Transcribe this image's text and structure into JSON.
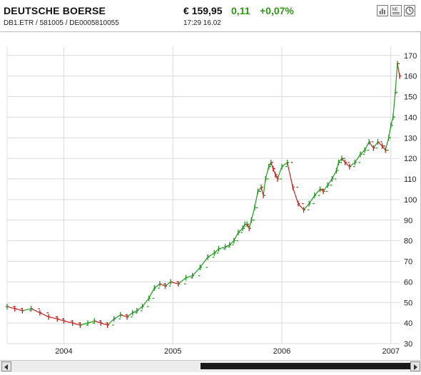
{
  "header": {
    "title": "DEUTSCHE BOERSE",
    "ids": "DB1.ETR  /  581005  /  DE0005810055",
    "price": "€ 159,95",
    "change": "0,11",
    "change_pct": "+0,07%",
    "time": "17:29   16.02",
    "tools": [
      "bar-chart-icon",
      "news-icon",
      "clock-icon"
    ]
  },
  "colors": {
    "up": "#1f9a1f",
    "down": "#c82020",
    "grid": "#d9d9d9",
    "positive_text": "#2a9a12"
  },
  "chart_data": {
    "type": "line",
    "title": "",
    "xlabel": "",
    "ylabel": "",
    "y_axis_position": "right",
    "grid": true,
    "ylim": [
      30,
      172
    ],
    "yticks": [
      30,
      40,
      50,
      60,
      70,
      80,
      90,
      100,
      110,
      120,
      130,
      140,
      150,
      160,
      170
    ],
    "xlim": [
      2003.48,
      2007.08
    ],
    "xticks": [
      {
        "label": "2004",
        "value": 2004.0
      },
      {
        "label": "2005",
        "value": 2005.0
      },
      {
        "label": "2006",
        "value": 2006.0
      },
      {
        "label": "2007",
        "value": 2007.0
      }
    ],
    "series": [
      {
        "name": "",
        "x": [
          2003.48,
          2003.55,
          2003.62,
          2003.7,
          2003.78,
          2003.86,
          2003.94,
          2004.0,
          2004.08,
          2004.15,
          2004.22,
          2004.28,
          2004.34,
          2004.4,
          2004.46,
          2004.52,
          2004.58,
          2004.63,
          2004.67,
          2004.72,
          2004.78,
          2004.83,
          2004.88,
          2004.93,
          2004.98,
          2005.05,
          2005.12,
          2005.18,
          2005.25,
          2005.32,
          2005.38,
          2005.42,
          2005.48,
          2005.52,
          2005.56,
          2005.6,
          2005.64,
          2005.66,
          2005.68,
          2005.7,
          2005.72,
          2005.75,
          2005.78,
          2005.81,
          2005.83,
          2005.85,
          2005.88,
          2005.9,
          2005.92,
          2005.94,
          2005.96,
          2006.0,
          2006.05,
          2006.1,
          2006.15,
          2006.2,
          2006.25,
          2006.3,
          2006.35,
          2006.38,
          2006.42,
          2006.46,
          2006.5,
          2006.52,
          2006.55,
          2006.58,
          2006.62,
          2006.67,
          2006.72,
          2006.76,
          2006.8,
          2006.84,
          2006.88,
          2006.92,
          2006.95,
          2006.98,
          2007.0,
          2007.02,
          2007.04,
          2007.06,
          2007.08
        ],
        "values": [
          48,
          47,
          46,
          47,
          45,
          43,
          42,
          41,
          40,
          39,
          40,
          41,
          40,
          39,
          42,
          44,
          43,
          45,
          46,
          48,
          52,
          57,
          59,
          58,
          60,
          59,
          62,
          63,
          67,
          72,
          74,
          76,
          77,
          78,
          80,
          84,
          86,
          88,
          88,
          86,
          90,
          96,
          104,
          106,
          102,
          110,
          116,
          118,
          115,
          112,
          110,
          116,
          118,
          106,
          98,
          95,
          98,
          102,
          105,
          104,
          107,
          110,
          114,
          118,
          120,
          118,
          116,
          118,
          122,
          124,
          128,
          125,
          128,
          126,
          124,
          130,
          136,
          140,
          152,
          166,
          160
        ]
      }
    ]
  }
}
